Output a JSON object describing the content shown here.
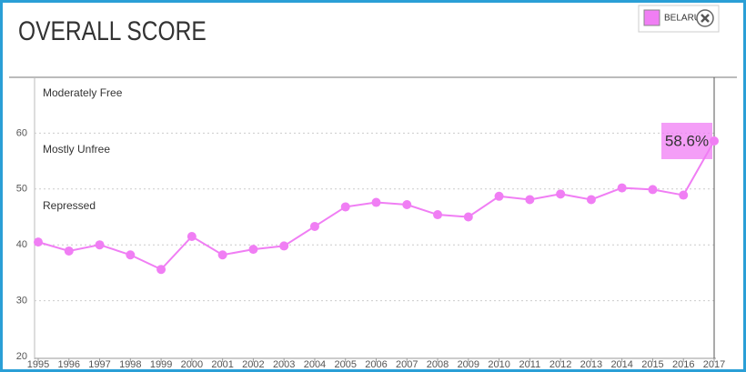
{
  "chart_data": {
    "type": "line",
    "title": "OVERALL SCORE",
    "categories": [
      "1995",
      "1996",
      "1997",
      "1998",
      "1999",
      "2000",
      "2001",
      "2002",
      "2003",
      "2004",
      "2005",
      "2006",
      "2007",
      "2008",
      "2009",
      "2010",
      "2011",
      "2012",
      "2013",
      "2014",
      "2015",
      "2016",
      "2017"
    ],
    "series": [
      {
        "name": "BELARUS",
        "color": "#f07ef4",
        "values": [
          40.5,
          38.9,
          40.0,
          38.2,
          35.6,
          41.5,
          38.2,
          39.2,
          39.8,
          43.3,
          46.8,
          47.6,
          47.2,
          45.4,
          45.0,
          48.7,
          48.1,
          49.1,
          48.1,
          50.2,
          49.9,
          48.9,
          58.6
        ],
        "value_labels": [
          null,
          null,
          null,
          null,
          null,
          null,
          null,
          null,
          null,
          null,
          null,
          null,
          null,
          null,
          null,
          null,
          null,
          null,
          null,
          null,
          null,
          null,
          "58.6%"
        ]
      }
    ],
    "annotations": [
      "Moderately Free",
      "Mostly Unfree",
      "Repressed"
    ],
    "ylim": [
      20,
      70
    ],
    "yticks": [
      20,
      30,
      40,
      50,
      60
    ],
    "grid": true
  }
}
